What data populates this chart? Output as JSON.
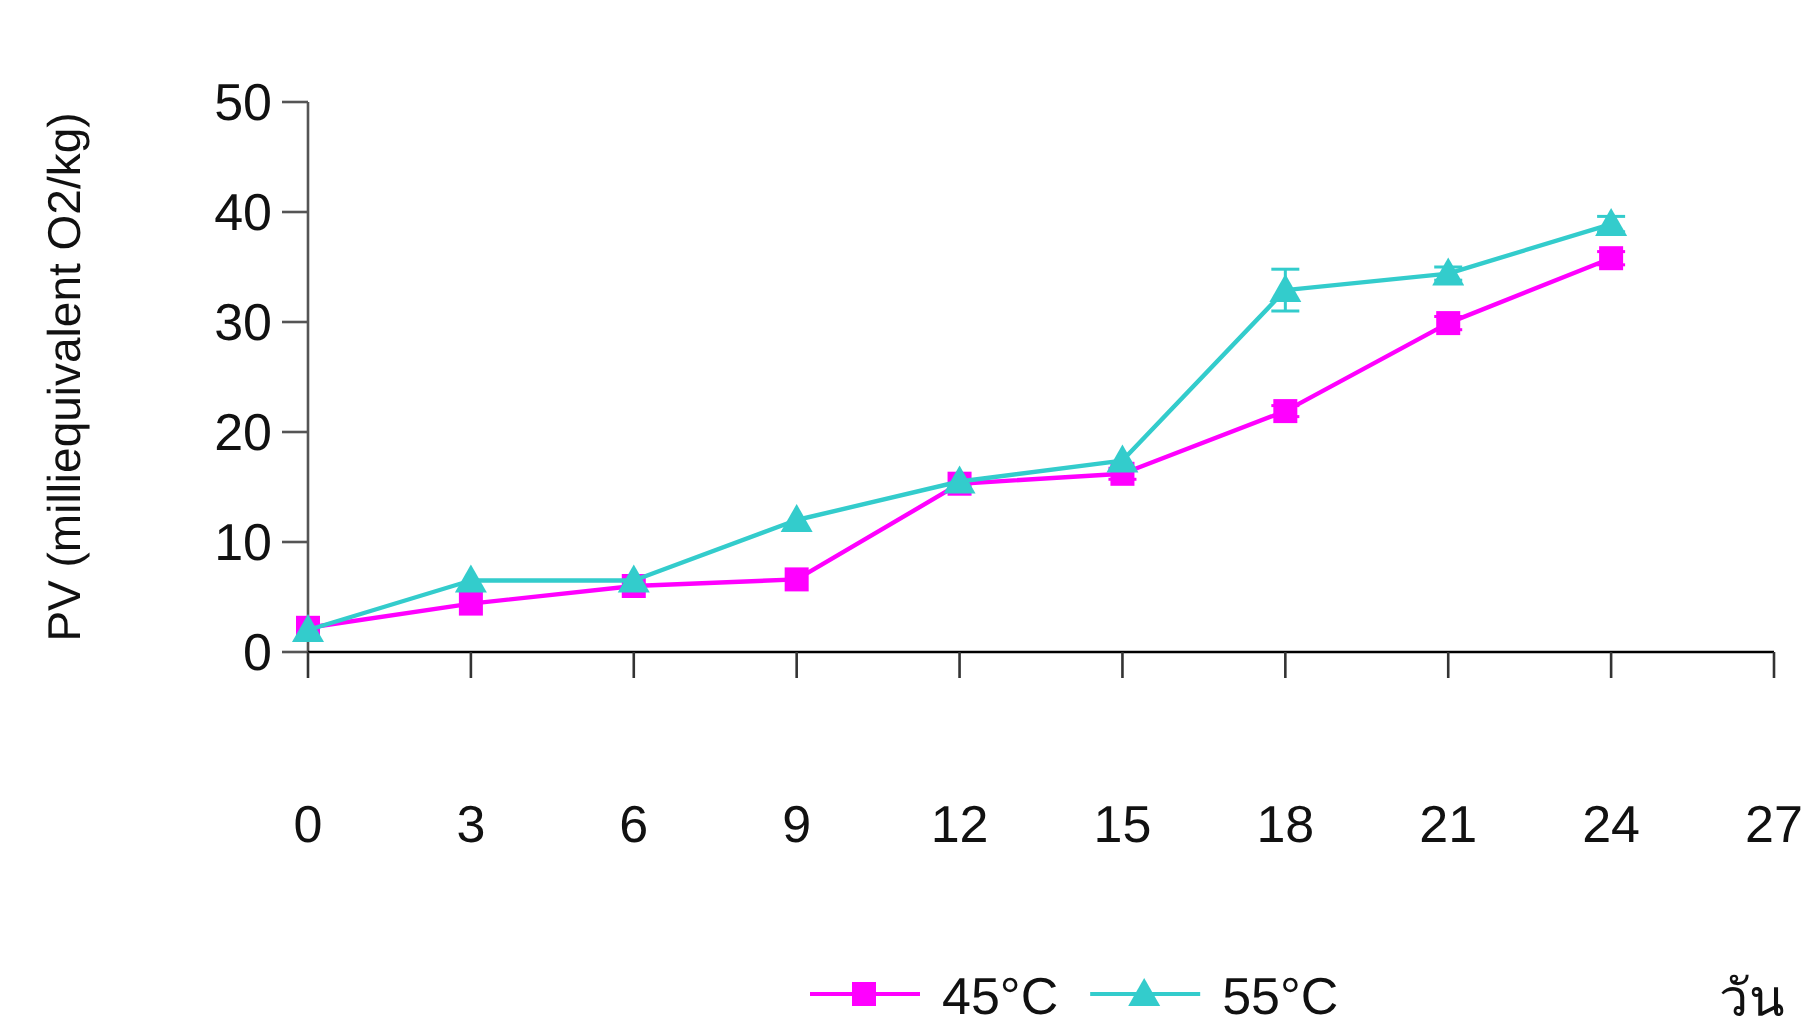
{
  "chart_data": {
    "type": "line",
    "xlabel": "วัน",
    "ylabel": "PV  (milliequivalent O2/kg)",
    "x": [
      0,
      3,
      6,
      9,
      12,
      15,
      18,
      21,
      24
    ],
    "xlim": [
      0,
      27
    ],
    "xticks": [
      0,
      3,
      6,
      9,
      12,
      15,
      18,
      21,
      24,
      27
    ],
    "ylim": [
      0,
      50
    ],
    "yticks": [
      0,
      10,
      20,
      30,
      40,
      50
    ],
    "grid": false,
    "legend": "bottom",
    "line_style": "solid",
    "series": [
      {
        "name": "45°C",
        "color": "#ff00ff",
        "marker": "square",
        "values": [
          2.2,
          4.4,
          6.0,
          6.6,
          15.3,
          16.2,
          21.9,
          29.9,
          35.8
        ],
        "errors": [
          null,
          null,
          null,
          null,
          null,
          0.5,
          0.5,
          0.6,
          0.6
        ]
      },
      {
        "name": "55°C",
        "color": "#33cccc",
        "marker": "triangle",
        "values": [
          2.0,
          6.5,
          6.5,
          12.0,
          15.5,
          17.4,
          32.9,
          34.4,
          38.9
        ],
        "errors": [
          null,
          null,
          null,
          null,
          null,
          null,
          1.9,
          0.6,
          0.7
        ]
      }
    ]
  }
}
